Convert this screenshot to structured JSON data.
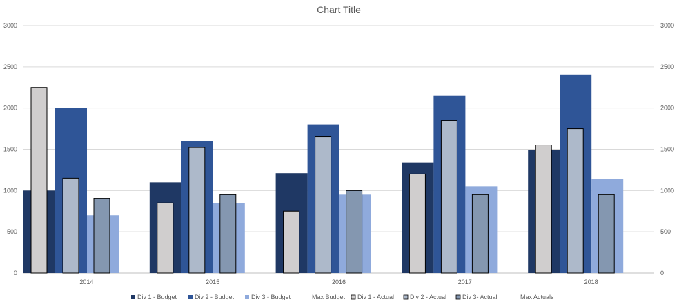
{
  "chart_data": {
    "type": "bar",
    "title": "Chart Title",
    "xlabel": "",
    "ylabel": "",
    "ylim": [
      0,
      3000
    ],
    "y2lim": [
      0,
      3000
    ],
    "y_ticks": [
      "0",
      "500",
      "1000",
      "1500",
      "2000",
      "2500",
      "3000"
    ],
    "y2_ticks": [
      "0",
      "500",
      "1000",
      "1500",
      "2000",
      "2500",
      "3000"
    ],
    "grid": true,
    "legend_position": "bottom",
    "categories": [
      "2014",
      "2015",
      "2016",
      "2017",
      "2018"
    ],
    "budget_series": [
      {
        "name": "Div 1 - Budget",
        "color": "#1f3864",
        "values": [
          1000,
          1100,
          1210,
          1340,
          1490
        ]
      },
      {
        "name": "Div 2 - Budget",
        "color": "#2f5597",
        "values": [
          2000,
          1600,
          1800,
          2150,
          2400
        ]
      },
      {
        "name": "Div 3 - Budget",
        "color": "#8faadc",
        "values": [
          700,
          850,
          950,
          1050,
          1140
        ]
      }
    ],
    "actual_series": [
      {
        "name": "Div 1 - Actual",
        "color": "#d0cece",
        "values": [
          2250,
          850,
          750,
          1200,
          1550
        ]
      },
      {
        "name": "Div 2 - Actual",
        "color": "#adb9ca",
        "values": [
          1150,
          1520,
          1650,
          1850,
          1750
        ]
      },
      {
        "name": "Div 3- Actual",
        "color": "#8497b0",
        "values": [
          900,
          950,
          1000,
          950,
          950
        ]
      }
    ],
    "max_series": [
      {
        "name": "Max Budget",
        "values": [
          2000,
          1600,
          1800,
          2150,
          2400
        ]
      },
      {
        "name": "Max Actuals",
        "values": [
          2250,
          1520,
          1650,
          1850,
          1750
        ]
      }
    ],
    "legend": [
      {
        "name": "Div 1 - Budget",
        "color": "#1f3864",
        "outlined": false
      },
      {
        "name": "Div 2 - Budget",
        "color": "#2f5597",
        "outlined": false
      },
      {
        "name": "Div 3 - Budget",
        "color": "#8faadc",
        "outlined": false
      },
      {
        "name": "Max Budget",
        "color": "none",
        "outlined": false
      },
      {
        "name": "Div 1 - Actual",
        "color": "#d0cece",
        "outlined": true
      },
      {
        "name": "Div 2 - Actual",
        "color": "#adb9ca",
        "outlined": true
      },
      {
        "name": "Div 3- Actual",
        "color": "#8497b0",
        "outlined": true
      },
      {
        "name": "Max Actuals",
        "color": "none",
        "outlined": false
      }
    ]
  }
}
